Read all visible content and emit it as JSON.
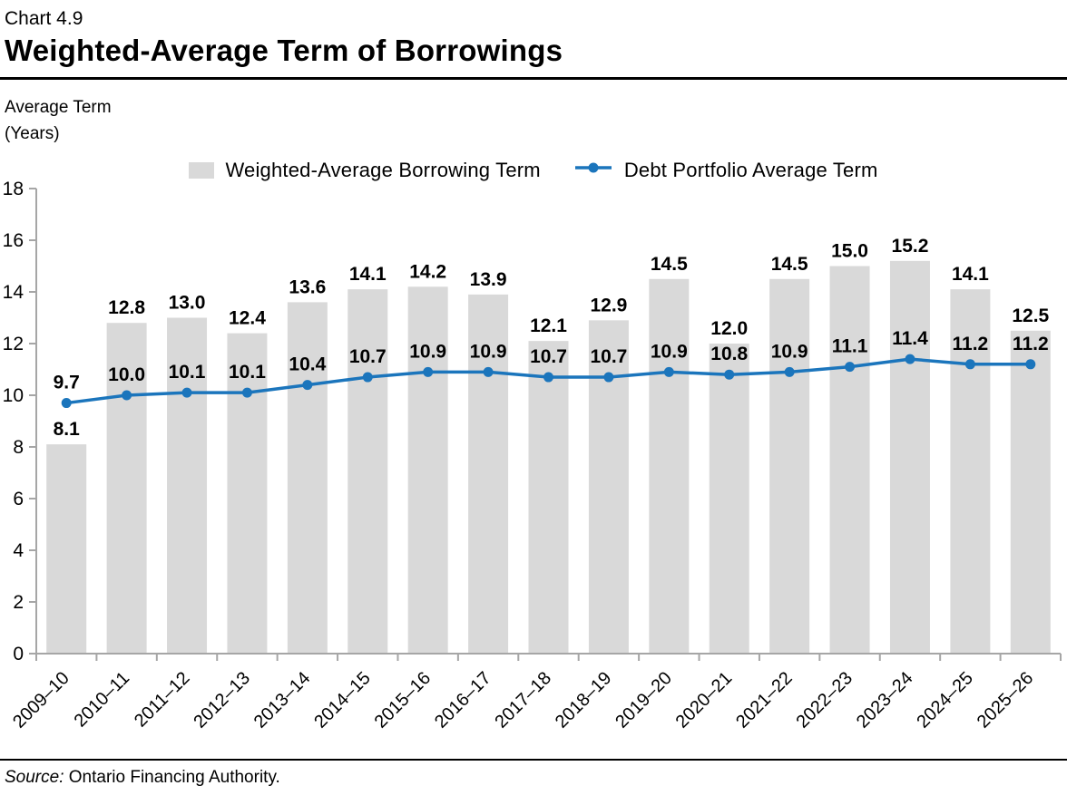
{
  "header": {
    "chart_number": "Chart 4.9",
    "title": "Weighted-Average Term of Borrowings"
  },
  "y_axis_caption": {
    "line1": "Average Term",
    "line2": "(Years)"
  },
  "source": {
    "label": "Source:",
    "text": "Ontario Financing Authority."
  },
  "colors": {
    "bar": "#d9d9d9",
    "line": "#1b75bc",
    "axis": "#a6a6a6",
    "label_text": "#000000"
  },
  "chart_data": {
    "type": "bar",
    "subtype": "bar-with-line-overlay",
    "title": "Weighted-Average Term of Borrowings",
    "ylabel": "Average Term (Years)",
    "xlabel": "",
    "ylim": [
      0,
      18
    ],
    "ytick_step": 2,
    "grid": false,
    "legend_position": "top",
    "data_labels": true,
    "categories": [
      "2009–10",
      "2010–11",
      "2011–12",
      "2012–13",
      "2013–14",
      "2014–15",
      "2015–16",
      "2016–17",
      "2017–18",
      "2018–19",
      "2019–20",
      "2020–21",
      "2021–22",
      "2022–23",
      "2023–24",
      "2024–25",
      "2025–26"
    ],
    "series": [
      {
        "name": "Weighted-Average Borrowing Term",
        "type": "bar",
        "values": [
          8.1,
          12.8,
          13.0,
          12.4,
          13.6,
          14.1,
          14.2,
          13.9,
          12.1,
          12.9,
          14.5,
          12.0,
          14.5,
          15.0,
          15.2,
          14.1,
          12.5
        ]
      },
      {
        "name": "Debt Portfolio Average Term",
        "type": "line",
        "values": [
          9.7,
          10.0,
          10.1,
          10.1,
          10.4,
          10.7,
          10.9,
          10.9,
          10.7,
          10.7,
          10.9,
          10.8,
          10.9,
          11.1,
          11.4,
          11.2,
          11.2
        ]
      }
    ]
  }
}
